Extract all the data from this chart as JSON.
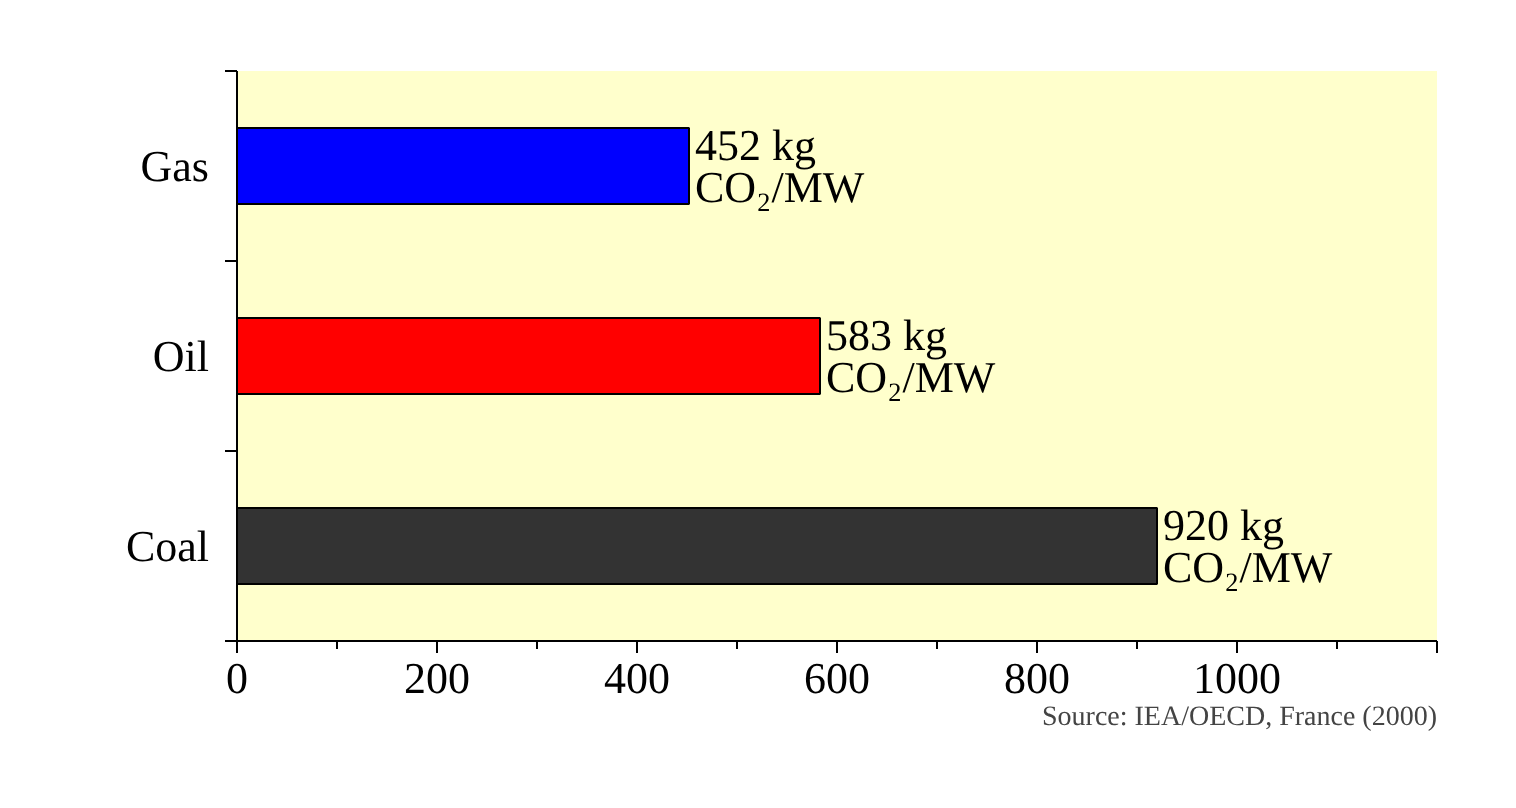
{
  "chart_data": {
    "type": "bar",
    "orientation": "horizontal",
    "categories": [
      "Gas",
      "Oil",
      "Coal"
    ],
    "values": [
      452,
      583,
      920
    ],
    "colors": [
      "#0000ff",
      "#ff0000",
      "#333333"
    ],
    "value_labels": [
      "452 kg\nCO₂/MW",
      "583 kg\nCO₂/MW",
      "920 kg\nCO₂/MW"
    ],
    "xlim": [
      0,
      1200
    ],
    "xticks": [
      0,
      200,
      400,
      600,
      800,
      1000,
      {
        "value": 1200,
        "label": null
      }
    ],
    "grid": false,
    "legend": false,
    "annotations": [
      "Source: IEA/OECD, France (2000)"
    ]
  }
}
